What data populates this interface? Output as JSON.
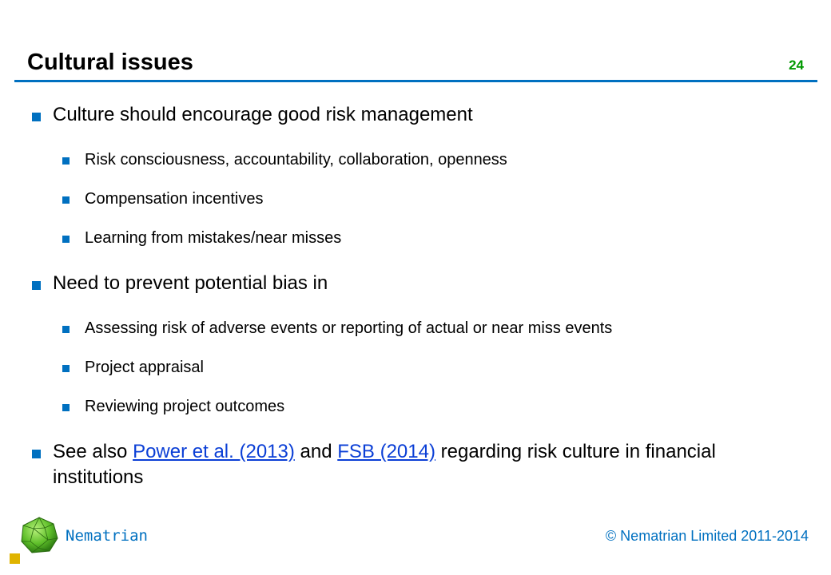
{
  "slide": {
    "title": "Cultural issues",
    "number": "24"
  },
  "bullets": {
    "b1": {
      "text": "Culture should encourage good risk management",
      "sub": [
        "Risk consciousness, accountability, collaboration, openness",
        "Compensation incentives",
        "Learning from mistakes/near misses"
      ]
    },
    "b2": {
      "text": "Need to prevent potential bias in",
      "sub": [
        "Assessing risk of adverse events or reporting of actual or near miss events",
        "Project appraisal",
        "Reviewing project outcomes"
      ]
    },
    "b3": {
      "prefix": "See also ",
      "link1": "Power et al. (2013)",
      "middle": " and ",
      "link2": "FSB (2014)",
      "suffix": " regarding risk culture in financial institutions"
    }
  },
  "footer": {
    "brand": "Nematrian",
    "copyright": "© Nematrian Limited 2011-2014",
    "logo_icon": "green-polyhedron-logo-icon"
  },
  "colors": {
    "accent": "#0070c0",
    "slide_number": "#009900",
    "link": "#0b3fd6",
    "corner_mark": "#e0b400"
  }
}
